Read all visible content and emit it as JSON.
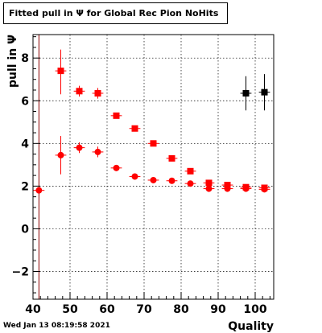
{
  "title": "Fitted pull in  Ψ  for Global Rec Pion NoHits",
  "timestamp": "Wed Jan 13 08:19:58 2021",
  "chart_data": {
    "type": "scatter",
    "title": "Fitted pull in  Ψ  for Global Rec Pion NoHits",
    "xlabel": "Quality",
    "ylabel": "pull in  Ψ",
    "xlim": [
      40,
      105
    ],
    "ylim": [
      -3.3,
      9.1
    ],
    "xticks": [
      40,
      50,
      60,
      70,
      80,
      90,
      100
    ],
    "yticks": [
      -2,
      0,
      2,
      4,
      6,
      8
    ],
    "xtick_labels": [
      "40",
      "50",
      "60",
      "70",
      "80",
      "90",
      "100"
    ],
    "ytick_labels": [
      "−2",
      "0",
      "2",
      "4",
      "6",
      "8"
    ],
    "grid": true,
    "vertical_line_x": 41.6,
    "series": [
      {
        "marker": "square",
        "color": "#ff0000",
        "points": [
          {
            "x": 47.5,
            "y": 7.4,
            "xerr": 1.5,
            "yerr_lo": 1.1,
            "yerr_hi": 1.0
          },
          {
            "x": 52.5,
            "y": 6.45,
            "xerr": 1.5,
            "yerr_lo": 0.25,
            "yerr_hi": 0.25
          },
          {
            "x": 57.5,
            "y": 6.35,
            "xerr": 1.5,
            "yerr_lo": 0.25,
            "yerr_hi": 0.25
          },
          {
            "x": 62.5,
            "y": 5.3,
            "xerr": 1.5,
            "yerr_lo": 0.1,
            "yerr_hi": 0.1
          },
          {
            "x": 67.5,
            "y": 4.7,
            "xerr": 1.5,
            "yerr_lo": 0.08,
            "yerr_hi": 0.08
          },
          {
            "x": 72.5,
            "y": 4.0,
            "xerr": 1.5,
            "yerr_lo": 0.06,
            "yerr_hi": 0.06
          },
          {
            "x": 77.5,
            "y": 3.3,
            "xerr": 1.5,
            "yerr_lo": 0.06,
            "yerr_hi": 0.06
          },
          {
            "x": 82.5,
            "y": 2.7,
            "xerr": 1.5,
            "yerr_lo": 0.05,
            "yerr_hi": 0.05
          },
          {
            "x": 87.5,
            "y": 2.15,
            "xerr": 1.5,
            "yerr_lo": 0.05,
            "yerr_hi": 0.05
          },
          {
            "x": 92.5,
            "y": 2.05,
            "xerr": 1.5,
            "yerr_lo": 0.05,
            "yerr_hi": 0.05
          },
          {
            "x": 97.5,
            "y": 1.95,
            "xerr": 1.5,
            "yerr_lo": 0.05,
            "yerr_hi": 0.05
          },
          {
            "x": 102.5,
            "y": 1.92,
            "xerr": 1.5,
            "yerr_lo": 0.05,
            "yerr_hi": 0.05
          }
        ]
      },
      {
        "marker": "circle",
        "color": "#ff0000",
        "points": [
          {
            "x": 41.6,
            "y": 1.8,
            "xerr": 1.5,
            "yerr_lo": 0.0,
            "yerr_hi": 0.0
          },
          {
            "x": 47.5,
            "y": 3.45,
            "xerr": 1.5,
            "yerr_lo": 0.9,
            "yerr_hi": 0.9
          },
          {
            "x": 52.5,
            "y": 3.8,
            "xerr": 1.5,
            "yerr_lo": 0.25,
            "yerr_hi": 0.25
          },
          {
            "x": 57.5,
            "y": 3.6,
            "xerr": 1.5,
            "yerr_lo": 0.25,
            "yerr_hi": 0.25
          },
          {
            "x": 62.5,
            "y": 2.85,
            "xerr": 1.5,
            "yerr_lo": 0.08,
            "yerr_hi": 0.08
          },
          {
            "x": 67.5,
            "y": 2.45,
            "xerr": 1.5,
            "yerr_lo": 0.06,
            "yerr_hi": 0.06
          },
          {
            "x": 72.5,
            "y": 2.28,
            "xerr": 1.5,
            "yerr_lo": 0.05,
            "yerr_hi": 0.05
          },
          {
            "x": 77.5,
            "y": 2.25,
            "xerr": 1.5,
            "yerr_lo": 0.05,
            "yerr_hi": 0.05
          },
          {
            "x": 82.5,
            "y": 2.12,
            "xerr": 1.5,
            "yerr_lo": 0.05,
            "yerr_hi": 0.05
          },
          {
            "x": 87.5,
            "y": 1.88,
            "xerr": 1.5,
            "yerr_lo": 0.05,
            "yerr_hi": 0.05
          },
          {
            "x": 92.5,
            "y": 1.88,
            "xerr": 1.5,
            "yerr_lo": 0.05,
            "yerr_hi": 0.05
          },
          {
            "x": 97.5,
            "y": 1.88,
            "xerr": 1.5,
            "yerr_lo": 0.05,
            "yerr_hi": 0.05
          },
          {
            "x": 102.5,
            "y": 1.85,
            "xerr": 1.5,
            "yerr_lo": 0.05,
            "yerr_hi": 0.05
          }
        ]
      },
      {
        "marker": "square",
        "color": "#000000",
        "points": [
          {
            "x": 97.5,
            "y": 6.35,
            "xerr": 1.5,
            "yerr_lo": 0.8,
            "yerr_hi": 0.8
          },
          {
            "x": 102.5,
            "y": 6.4,
            "xerr": 1.5,
            "yerr_lo": 0.85,
            "yerr_hi": 0.85
          }
        ]
      }
    ]
  }
}
